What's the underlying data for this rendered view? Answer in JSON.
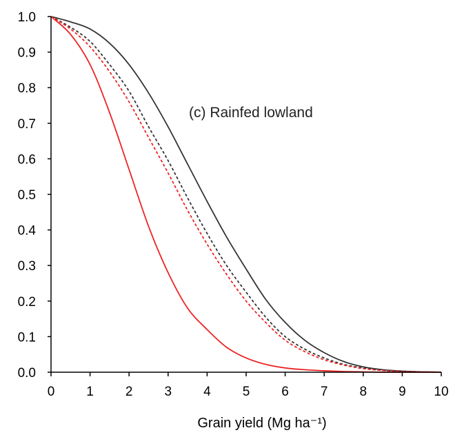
{
  "chart_data": {
    "type": "line",
    "title": "",
    "annotation": "(c) Rainfed lowland",
    "xlabel": "Grain yield (Mg ha⁻¹)",
    "ylabel": "",
    "xlim": [
      0,
      10
    ],
    "ylim": [
      0,
      1
    ],
    "x_ticks": [
      "0",
      "1",
      "2",
      "3",
      "4",
      "5",
      "6",
      "7",
      "8",
      "9",
      "10"
    ],
    "y_ticks": [
      "0.0",
      "0.1",
      "0.2",
      "0.3",
      "0.4",
      "0.5",
      "0.6",
      "0.7",
      "0.8",
      "0.9",
      "1.0"
    ],
    "grid": false,
    "legend": "none",
    "x": [
      0,
      0.5,
      1,
      1.5,
      2,
      2.5,
      3,
      3.5,
      4,
      4.5,
      5,
      5.5,
      6,
      6.5,
      7,
      7.5,
      8,
      8.5,
      9,
      9.5,
      10
    ],
    "series": [
      {
        "color": "#333333",
        "dash": "solid",
        "values": [
          1.0,
          0.985,
          0.965,
          0.925,
          0.865,
          0.785,
          0.69,
          0.585,
          0.48,
          0.38,
          0.29,
          0.205,
          0.14,
          0.09,
          0.055,
          0.03,
          0.015,
          0.007,
          0.003,
          0.001,
          0.0
        ]
      },
      {
        "color": "#333333",
        "dash": "dashed",
        "values": [
          1.0,
          0.97,
          0.93,
          0.865,
          0.79,
          0.69,
          0.595,
          0.49,
          0.39,
          0.3,
          0.225,
          0.155,
          0.1,
          0.065,
          0.04,
          0.022,
          0.012,
          0.005,
          0.002,
          0.001,
          0.0
        ]
      },
      {
        "color": "#ee2222",
        "dash": "dashed",
        "values": [
          1.0,
          0.965,
          0.915,
          0.845,
          0.76,
          0.66,
          0.56,
          0.455,
          0.36,
          0.275,
          0.2,
          0.14,
          0.09,
          0.058,
          0.035,
          0.02,
          0.01,
          0.005,
          0.002,
          0.001,
          0.0
        ]
      },
      {
        "color": "#ee2222",
        "dash": "solid",
        "values": [
          1.0,
          0.95,
          0.865,
          0.73,
          0.57,
          0.41,
          0.28,
          0.18,
          0.12,
          0.07,
          0.04,
          0.022,
          0.012,
          0.007,
          0.004,
          0.002,
          0.001,
          0.0,
          0.0,
          0.0,
          0.0
        ]
      }
    ]
  }
}
